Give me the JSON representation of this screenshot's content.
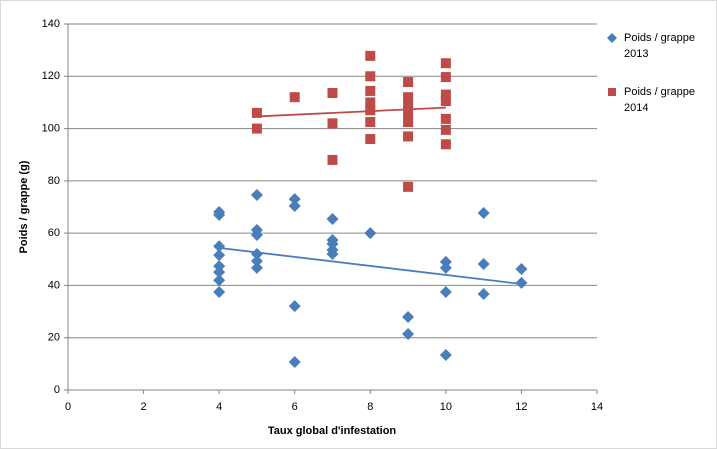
{
  "chart_data": {
    "type": "scatter",
    "x_label": "Taux global d'infestation",
    "y_label": "Poids / grappe (g)",
    "xlim": [
      0,
      14
    ],
    "xticks": [
      0,
      2,
      4,
      6,
      8,
      10,
      12,
      14
    ],
    "ylim": [
      0,
      140
    ],
    "yticks": [
      0,
      20,
      40,
      60,
      80,
      100,
      120,
      140
    ],
    "grid": true,
    "trendline": true,
    "legend": "right",
    "series": [
      {
        "name": "Poids / grappe 2013",
        "color": "#4a7ebb",
        "marker": "diamond",
        "x": [
          4,
          4,
          4,
          4,
          4,
          4,
          4,
          4,
          5,
          5,
          5,
          5,
          5,
          5,
          6,
          6,
          6,
          6,
          7,
          7,
          7,
          7,
          7,
          8,
          9,
          9,
          10,
          10,
          10,
          10,
          11,
          11,
          11,
          12,
          12
        ],
        "values": [
          68.1,
          67,
          55,
          51.6,
          47.4,
          45.1,
          42,
          37.5,
          74.6,
          61.2,
          59.3,
          52,
          49.3,
          46.7,
          73,
          70.4,
          32.1,
          10.7,
          65.4,
          57.4,
          55.9,
          53.6,
          52,
          60,
          27.9,
          21.4,
          49,
          46.7,
          37.5,
          13.4,
          67.7,
          48.2,
          36.7,
          46.3,
          41
        ]
      },
      {
        "name": "Poids / grappe 2014",
        "color": "#be4b48",
        "marker": "square",
        "x": [
          5,
          5,
          6,
          7,
          7,
          7,
          8,
          8,
          8,
          8,
          8,
          8,
          8,
          9,
          9,
          9,
          9,
          9,
          9,
          9,
          10,
          10,
          10,
          10,
          10,
          10,
          10
        ],
        "values": [
          106,
          100,
          112,
          113.6,
          102,
          88,
          127.8,
          120,
          114.4,
          110,
          107,
          102.5,
          96,
          117.8,
          112,
          109,
          106,
          102.5,
          97,
          77.7,
          125,
          119.7,
          113,
          110.5,
          103.7,
          99.5,
          94
        ]
      }
    ]
  }
}
